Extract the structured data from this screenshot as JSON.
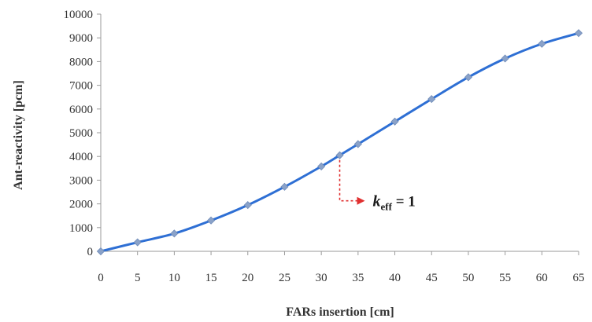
{
  "chart_data": {
    "type": "line",
    "title": "",
    "xlabel": "FARs insertion [cm]",
    "ylabel": "Ant-reactivity [pcm]",
    "xlim": [
      0,
      65
    ],
    "ylim": [
      0,
      10000
    ],
    "xticks": [
      0,
      5,
      10,
      15,
      20,
      25,
      30,
      35,
      40,
      45,
      50,
      55,
      60,
      65
    ],
    "yticks": [
      0,
      1000,
      2000,
      3000,
      4000,
      5000,
      6000,
      7000,
      8000,
      9000,
      10000
    ],
    "grid": false,
    "legend": "none",
    "series": [
      {
        "color": "#2e6fd4",
        "marker": "diamond",
        "marker_color": "#8aa2c9",
        "x": [
          0,
          5,
          10,
          15,
          20,
          25,
          30,
          32.5,
          35,
          40,
          45,
          50,
          55,
          60,
          65
        ],
        "y": [
          0,
          380,
          750,
          1300,
          1950,
          2720,
          3580,
          4050,
          4520,
          5470,
          6420,
          7340,
          8130,
          8750,
          9200
        ]
      }
    ],
    "annotations": [
      {
        "text_main": "k",
        "text_sub": "eff",
        "text_rest": " = 1",
        "x": 32.5,
        "y": 4050,
        "arrow_color": "#e03030"
      }
    ]
  }
}
